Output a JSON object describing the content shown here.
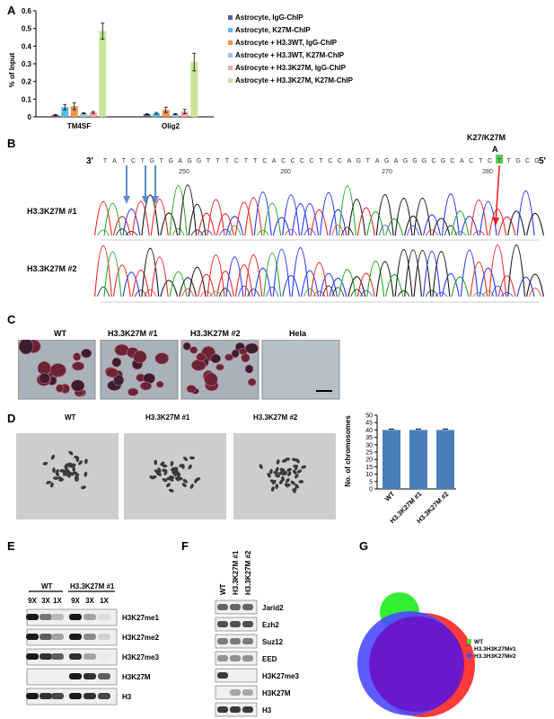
{
  "panels": {
    "A": "A",
    "B": "B",
    "C": "C",
    "D": "D",
    "E": "E",
    "F": "F",
    "G": "G"
  },
  "panelA": {
    "chart_data": {
      "type": "bar",
      "ylabel": "% of Input",
      "ylim": [
        0,
        0.6
      ],
      "yticks": [
        "0",
        "0.1",
        "0.2",
        "0.3",
        "0.4",
        "0.5",
        "0.6"
      ],
      "categories": [
        "TM4SF",
        "Olig2"
      ],
      "series": [
        {
          "name": "Astrocyte, IgG-ChIP",
          "color": "#5b5ea6",
          "values": [
            0.01,
            0.015
          ]
        },
        {
          "name": "Astrocyte, K27M-ChIP",
          "color": "#5cb8e6",
          "values": [
            0.055,
            0.02
          ]
        },
        {
          "name": "Astrocyte + H3.3WT, IgG-ChIP",
          "color": "#f0954d",
          "values": [
            0.06,
            0.04
          ]
        },
        {
          "name": "Astrocyte + H3.3WT, K27M-ChIP",
          "color": "#9ec3e8",
          "values": [
            0.02,
            0.015
          ]
        },
        {
          "name": "Astrocyte + H3.3K27M, IgG-ChIP",
          "color": "#f4a3a8",
          "values": [
            0.025,
            0.03
          ]
        },
        {
          "name": "Astrocyte + H3.3K27M, K27M-ChIP",
          "color": "#c8e59a",
          "values": [
            0.485,
            0.31
          ]
        }
      ],
      "errors": [
        [
          0.003,
          0.002
        ],
        [
          0.015,
          0.005
        ],
        [
          0.02,
          0.015
        ],
        [
          0.003,
          0.003
        ],
        [
          0.005,
          0.012
        ],
        [
          0.045,
          0.05
        ]
      ]
    }
  },
  "panelB": {
    "strand_left": "3'",
    "strand_right": "5'",
    "mutation_label": "K27/K27M",
    "mutation_base": "A",
    "sequence": "TATCTGTGAGGTTTCTTCACCCCTCCAGTAGAGGGCGCACTCTTGCG",
    "positions": [
      "250",
      "260",
      "270",
      "280"
    ],
    "tracks": [
      "H3.3K27M #1",
      "H3.3K27M #2"
    ]
  },
  "panelC": {
    "labels": [
      "WT",
      "H3.3K27M #1",
      "H3.3K27M #2",
      "Hela"
    ]
  },
  "panelD": {
    "labels": [
      "WT",
      "H3.3K27M #1",
      "H3.3K27M #2"
    ],
    "chart_data": {
      "type": "bar",
      "ylabel": "No. of chromosomes",
      "ylim": [
        0,
        50
      ],
      "yticks": [
        "0",
        "5",
        "10",
        "15",
        "20",
        "25",
        "30",
        "35",
        "40",
        "45",
        "50"
      ],
      "categories": [
        "WT",
        "H3.3K27M #1",
        "H3.3K27M #2"
      ],
      "values": [
        40,
        40,
        40
      ],
      "color": "#4a7ebb"
    }
  },
  "panelE": {
    "groups": [
      "WT",
      "H3.3K27M #1"
    ],
    "dilutions": [
      "9X",
      "3X",
      "1X",
      "9X",
      "3X",
      "1X"
    ],
    "rows": [
      "H3K27me1",
      "H3K27me2",
      "H3K27me3",
      "H3K27M",
      "H3"
    ]
  },
  "panelF": {
    "lanes": [
      "WT",
      "H3.3K27M #1",
      "H3.3K27M #2"
    ],
    "rows": [
      "Jarid2",
      "Ezh2",
      "Suz12",
      "EED",
      "H3K27me3",
      "H3K27M",
      "H3"
    ]
  },
  "panelG": {
    "legend": [
      {
        "label": "WT",
        "color": "#33ee33"
      },
      {
        "label": "H3.3H3K27M#1",
        "color": "#ff3a3a"
      },
      {
        "label": "H3.3H3K27M#2",
        "color": "#4a4aff"
      }
    ]
  }
}
